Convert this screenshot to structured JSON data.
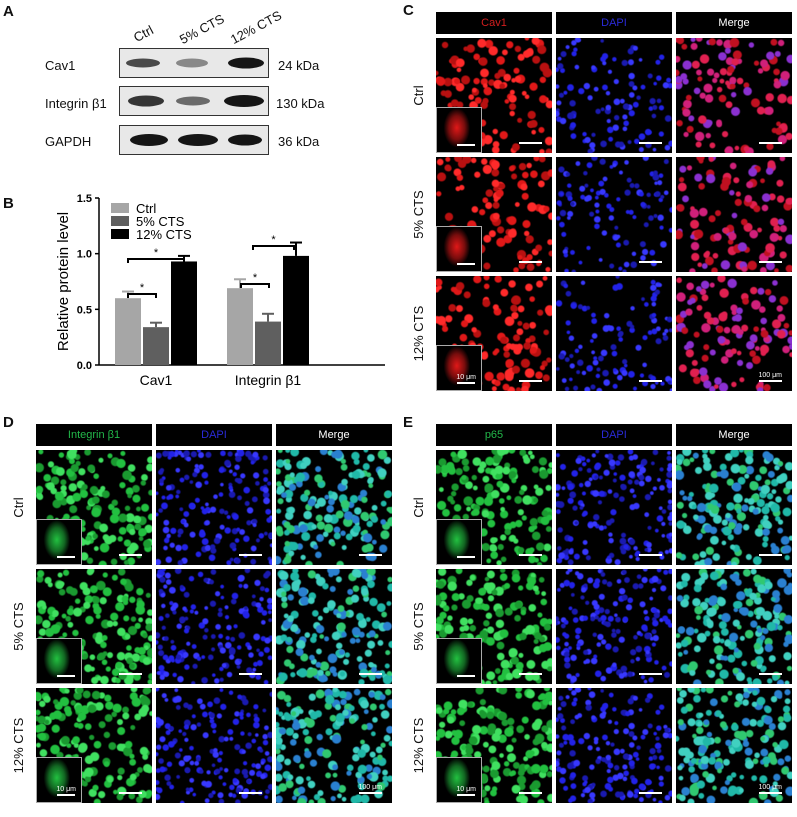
{
  "panels": {
    "A": {
      "letter": "A",
      "lanes": [
        "Ctrl",
        "5% CTS",
        "12% CTS"
      ],
      "rows": [
        {
          "protein": "Cav1",
          "kda": "24 kDa",
          "intensity": [
            0.75,
            0.45,
            1.0
          ]
        },
        {
          "protein": "Integrin β1",
          "kda": "130 kDa",
          "intensity": [
            0.85,
            0.55,
            1.0
          ]
        },
        {
          "protein": "GAPDH",
          "kda": "36 kDa",
          "intensity": [
            1.0,
            1.0,
            0.95
          ]
        }
      ]
    },
    "B": {
      "letter": "B"
    },
    "C": {
      "letter": "C",
      "channels": [
        "Cav1",
        "DAPI",
        "Merge"
      ],
      "channel_colors": [
        "#d21e1e",
        "#2a2ad8",
        "#ffffff"
      ],
      "rows": [
        "Ctrl",
        "5% CTS",
        "12% CTS"
      ],
      "inset_scale": "10 μm",
      "main_scale": "100 μm"
    },
    "D": {
      "letter": "D",
      "channels": [
        "Integrin β1",
        "DAPI",
        "Merge"
      ],
      "channel_colors": [
        "#22b84a",
        "#2a2ad8",
        "#ffffff"
      ],
      "rows": [
        "Ctrl",
        "5% CTS",
        "12% CTS"
      ],
      "inset_scale": "10 μm",
      "main_scale": "100 μm"
    },
    "E": {
      "letter": "E",
      "channels": [
        "p65",
        "DAPI",
        "Merge"
      ],
      "channel_colors": [
        "#22b84a",
        "#2a2ad8",
        "#ffffff"
      ],
      "rows": [
        "Ctrl",
        "5% CTS",
        "12% CTS"
      ],
      "inset_scale": "10 μm",
      "main_scale": "100 μm"
    }
  },
  "chart_data": {
    "type": "bar",
    "title": "",
    "xlabel": "",
    "ylabel": "Relative protein level",
    "categories": [
      "Cav1",
      "Integrin β1"
    ],
    "series": [
      {
        "name": "Ctrl",
        "color": "#a6a6a6",
        "values": [
          0.6,
          0.69
        ],
        "errors": [
          0.06,
          0.08
        ]
      },
      {
        "name": "5% CTS",
        "color": "#5f5f5f",
        "values": [
          0.34,
          0.39
        ],
        "errors": [
          0.04,
          0.07
        ]
      },
      {
        "name": "12% CTS",
        "color": "#000000",
        "values": [
          0.93,
          0.98
        ],
        "errors": [
          0.05,
          0.12
        ]
      }
    ],
    "ylim": [
      0,
      1.5
    ],
    "yticks": [
      "0.0",
      "0.5",
      "1.0",
      "1.5"
    ],
    "grid": false,
    "legend_position": "top-left inside",
    "annotations": [
      {
        "category": "Cav1",
        "between": [
          "Ctrl",
          "5% CTS"
        ],
        "label": "*"
      },
      {
        "category": "Cav1",
        "between": [
          "Ctrl",
          "12% CTS"
        ],
        "label": "*"
      },
      {
        "category": "Integrin β1",
        "between": [
          "Ctrl",
          "5% CTS"
        ],
        "label": "*"
      },
      {
        "category": "Integrin β1",
        "between": [
          "Ctrl",
          "12% CTS"
        ],
        "label": "*"
      }
    ]
  }
}
